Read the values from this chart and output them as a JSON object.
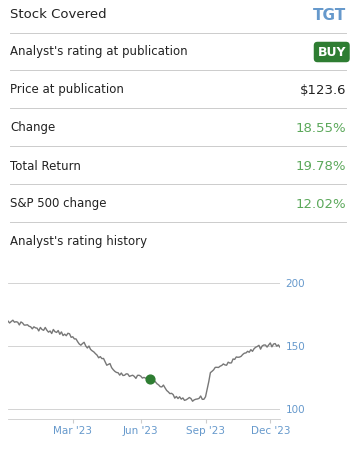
{
  "stock_covered_label": "Stock Covered",
  "stock_covered_value": "TGT",
  "rating_label": "Analyst's rating at publication",
  "rating_value": "BUY",
  "price_label": "Price at publication",
  "price_value": "$123.6",
  "change_label": "Change",
  "change_value": "18.55%",
  "total_return_label": "Total Return",
  "total_return_value": "19.78%",
  "sp500_label": "S&P 500 change",
  "sp500_value": "12.02%",
  "history_label": "Analyst's rating history",
  "buy_bg_color": "#2e7d32",
  "buy_text_color": "#ffffff",
  "tgt_color": "#6699cc",
  "green_value_color": "#5ba85a",
  "label_color": "#222222",
  "price_value_color": "#222222",
  "divider_color": "#cccccc",
  "chart_line_color": "#777777",
  "axis_label_color": "#6699cc",
  "dot_color": "#2e7d32",
  "yticks": [
    100,
    150,
    200
  ],
  "xtick_labels": [
    "Mar '23",
    "Jun '23",
    "Sep '23",
    "Dec '23"
  ],
  "background_color": "#ffffff",
  "dot_index": 88,
  "ylim_low": 92,
  "ylim_high": 215
}
